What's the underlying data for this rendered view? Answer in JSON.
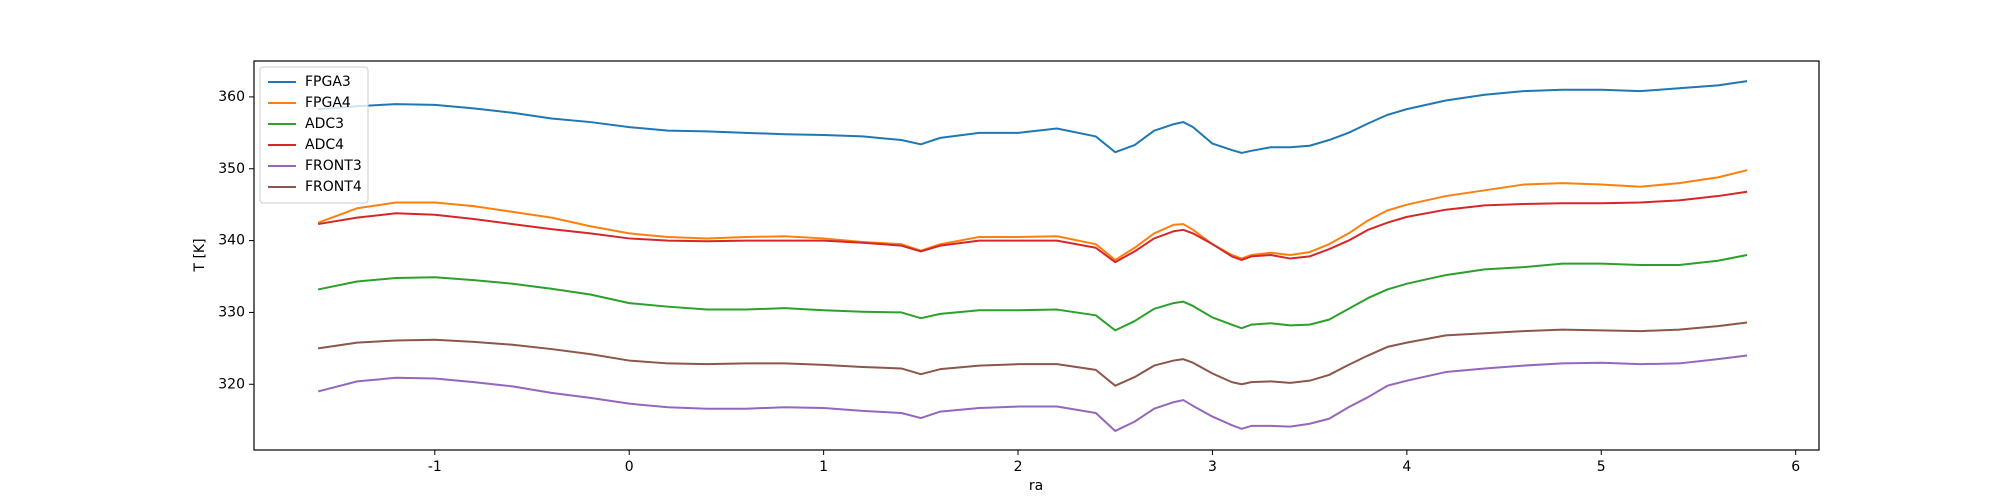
{
  "chart_data": {
    "type": "line",
    "x_label": "ra",
    "y_label": "T [K]",
    "legend": "upper left",
    "grid": false,
    "xlim": [
      -1.93,
      6.12
    ],
    "ylim": [
      310.85,
      365.0
    ],
    "xticks": [
      -1,
      0,
      1,
      2,
      3,
      4,
      5,
      6
    ],
    "yticks": [
      320,
      330,
      340,
      350,
      360
    ],
    "x": [
      -1.6,
      -1.4,
      -1.2,
      -1.0,
      -0.8,
      -0.6,
      -0.4,
      -0.2,
      0,
      0.2,
      0.4,
      0.6,
      0.8,
      1.0,
      1.2,
      1.4,
      1.5,
      1.6,
      1.8,
      2.0,
      2.2,
      2.4,
      2.5,
      2.6,
      2.7,
      2.8,
      2.85,
      2.9,
      3.0,
      3.1,
      3.15,
      3.2,
      3.3,
      3.4,
      3.5,
      3.6,
      3.7,
      3.8,
      3.9,
      4.0,
      4.2,
      4.4,
      4.6,
      4.8,
      5.0,
      5.2,
      5.4,
      5.6,
      5.75
    ],
    "series": [
      {
        "name": "FPGA3",
        "color": "#1f77b4",
        "values": [
          358.3,
          358.7,
          359,
          358.9,
          358.4,
          357.8,
          357,
          356.5,
          355.8,
          355.3,
          355.2,
          355,
          354.8,
          354.7,
          354.5,
          354,
          353.4,
          354.3,
          355,
          355,
          355.6,
          354.5,
          352.3,
          353.3,
          355.3,
          356.2,
          356.5,
          355.8,
          353.5,
          352.6,
          352.2,
          352.5,
          353,
          353,
          353.2,
          354,
          355,
          356.3,
          357.5,
          358.3,
          359.5,
          360.3,
          360.8,
          361,
          361,
          360.8,
          361.2,
          361.6,
          362.2
        ]
      },
      {
        "name": "FPGA4",
        "color": "#ff7f0e",
        "values": [
          342.5,
          344.5,
          345.3,
          345.3,
          344.8,
          344,
          343.2,
          342,
          341,
          340.5,
          340.3,
          340.5,
          340.6,
          340.3,
          339.8,
          339.5,
          338.6,
          339.5,
          340.5,
          340.5,
          340.6,
          339.5,
          337.3,
          339,
          341,
          342.2,
          342.3,
          341.5,
          339.5,
          338,
          337.5,
          338,
          338.3,
          338,
          338.4,
          339.5,
          341,
          342.8,
          344.2,
          345,
          346.2,
          347,
          347.8,
          348,
          347.8,
          347.5,
          348,
          348.8,
          349.8
        ]
      },
      {
        "name": "ADC3",
        "color": "#2ca02c",
        "values": [
          333.2,
          334.3,
          334.8,
          334.9,
          334.5,
          334,
          333.3,
          332.5,
          331.3,
          330.8,
          330.4,
          330.4,
          330.6,
          330.3,
          330.1,
          330,
          329.2,
          329.8,
          330.3,
          330.3,
          330.4,
          329.6,
          327.5,
          328.8,
          330.5,
          331.3,
          331.5,
          330.9,
          329.3,
          328.3,
          327.8,
          328.3,
          328.5,
          328.2,
          328.3,
          329,
          330.5,
          332,
          333.2,
          334,
          335.2,
          336,
          336.3,
          336.8,
          336.8,
          336.6,
          336.6,
          337.2,
          338
        ]
      },
      {
        "name": "ADC4",
        "color": "#d62728",
        "values": [
          342.3,
          343.2,
          343.8,
          343.6,
          343,
          342.3,
          341.6,
          341,
          340.3,
          340,
          339.9,
          340,
          340,
          340,
          339.7,
          339.3,
          338.5,
          339.3,
          340,
          340,
          340,
          339,
          337,
          338.5,
          340.3,
          341.3,
          341.5,
          341,
          339.5,
          337.8,
          337.3,
          337.8,
          338,
          337.5,
          337.8,
          338.8,
          340,
          341.5,
          342.5,
          343.3,
          344.3,
          344.9,
          345.1,
          345.2,
          345.2,
          345.3,
          345.6,
          346.2,
          346.8
        ]
      },
      {
        "name": "FRONT3",
        "color": "#9467bd",
        "values": [
          319,
          320.4,
          320.9,
          320.8,
          320.3,
          319.7,
          318.8,
          318.1,
          317.3,
          316.8,
          316.6,
          316.6,
          316.8,
          316.7,
          316.3,
          316,
          315.3,
          316.2,
          316.7,
          316.9,
          316.9,
          316,
          313.5,
          314.8,
          316.6,
          317.5,
          317.8,
          317,
          315.5,
          314.3,
          313.8,
          314.2,
          314.2,
          314.1,
          314.5,
          315.2,
          316.8,
          318.2,
          319.8,
          320.5,
          321.7,
          322.2,
          322.6,
          322.9,
          323,
          322.8,
          322.9,
          323.5,
          324
        ]
      },
      {
        "name": "FRONT4",
        "color": "#8c564b",
        "values": [
          325,
          325.8,
          326.1,
          326.2,
          325.9,
          325.5,
          324.9,
          324.2,
          323.3,
          322.9,
          322.8,
          322.9,
          322.9,
          322.7,
          322.4,
          322.2,
          321.4,
          322.1,
          322.6,
          322.8,
          322.8,
          322,
          319.8,
          321,
          322.6,
          323.3,
          323.5,
          323,
          321.5,
          320.3,
          320,
          320.3,
          320.4,
          320.2,
          320.5,
          321.3,
          322.7,
          324,
          325.2,
          325.8,
          326.8,
          327.1,
          327.4,
          327.6,
          327.5,
          327.4,
          327.6,
          328.1,
          328.6
        ]
      }
    ]
  }
}
